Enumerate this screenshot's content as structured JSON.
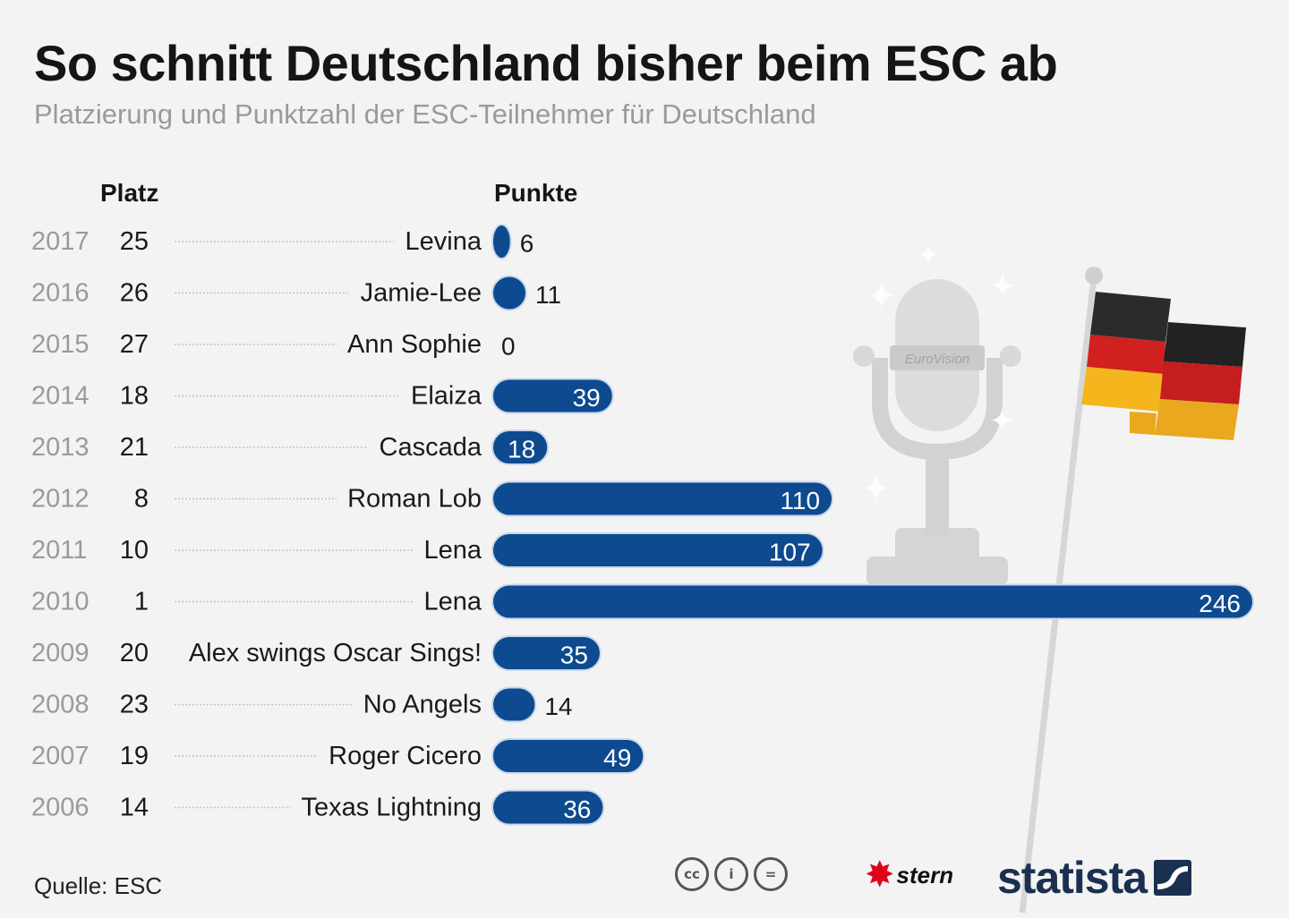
{
  "header": {
    "title": "So schnitt Deutschland bisher beim ESC ab",
    "subtitle": "Platzierung und Punktzahl der ESC-Teilnehmer für Deutschland"
  },
  "columns": {
    "platz": "Platz",
    "punkte": "Punkte"
  },
  "chart_data": {
    "type": "bar",
    "orientation": "horizontal",
    "title": "So schnitt Deutschland bisher beim ESC ab",
    "subtitle": "Platzierung und Punktzahl der ESC-Teilnehmer für Deutschland",
    "value_label": "Punkte",
    "rank_label": "Platz",
    "bar_color": "#0d4a8f",
    "rows": [
      {
        "year": "2017",
        "platz": "25",
        "artist": "Levina",
        "punkte": 6
      },
      {
        "year": "2016",
        "platz": "26",
        "artist": "Jamie-Lee",
        "punkte": 11
      },
      {
        "year": "2015",
        "platz": "27",
        "artist": "Ann Sophie",
        "punkte": 0
      },
      {
        "year": "2014",
        "platz": "18",
        "artist": "Elaiza",
        "punkte": 39
      },
      {
        "year": "2013",
        "platz": "21",
        "artist": "Cascada",
        "punkte": 18
      },
      {
        "year": "2012",
        "platz": "8",
        "artist": "Roman Lob",
        "punkte": 110
      },
      {
        "year": "2011",
        "platz": "10",
        "artist": "Lena",
        "punkte": 107
      },
      {
        "year": "2010",
        "platz": "1",
        "artist": "Lena",
        "punkte": 246
      },
      {
        "year": "2009",
        "platz": "20",
        "artist": "Alex swings Oscar Sings!",
        "punkte": 35
      },
      {
        "year": "2008",
        "platz": "23",
        "artist": "No Angels",
        "punkte": 14
      },
      {
        "year": "2007",
        "platz": "19",
        "artist": "Roger Cicero",
        "punkte": 49
      },
      {
        "year": "2006",
        "platz": "14",
        "artist": "Texas Lightning",
        "punkte": 36
      }
    ],
    "xlim": [
      0,
      246
    ]
  },
  "illustration": {
    "microphone_badge": "EuroVision"
  },
  "footer": {
    "source": "Quelle: ESC",
    "cc_icons": [
      "cc",
      "i",
      "="
    ],
    "stern": "stern",
    "statista": "statista"
  }
}
